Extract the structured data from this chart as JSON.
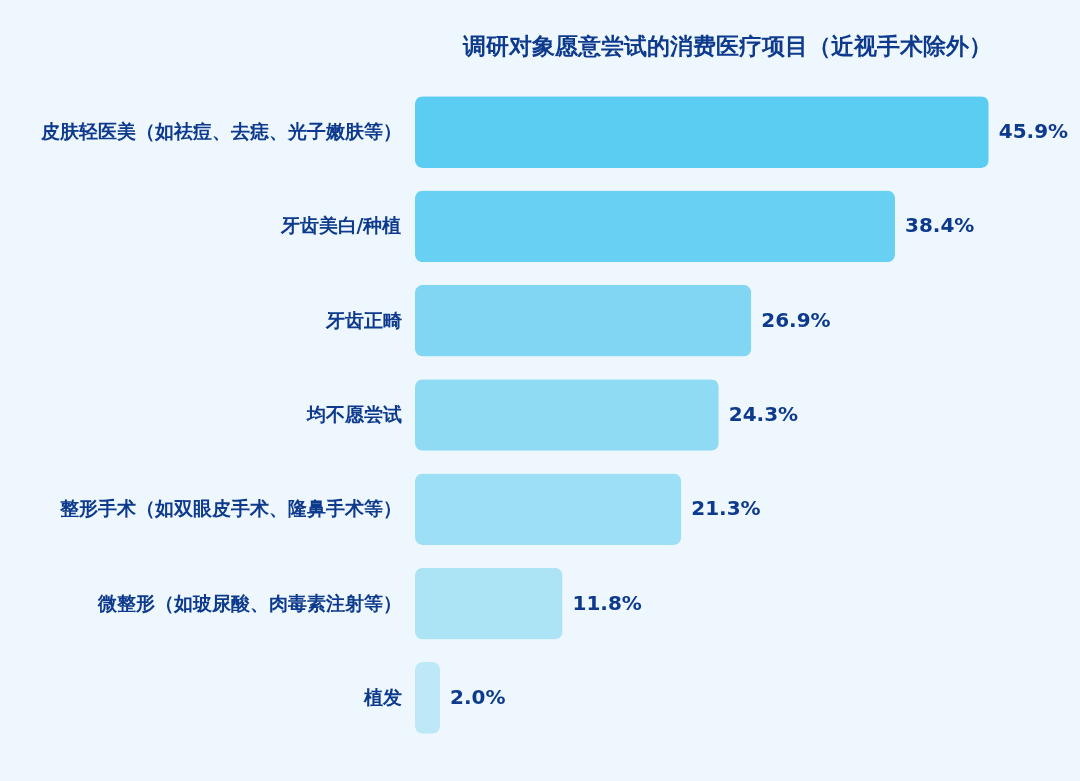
{
  "chart_data": {
    "type": "bar",
    "orientation": "horizontal",
    "title": "调研对象愿意尝试的消费医疗项目（近视手术除外）",
    "categories": [
      "皮肤轻医美（如祛痘、去痣、光子嫩肤等）",
      "牙齿美白/种植",
      "牙齿正畸",
      "均不愿尝试",
      "整形手术（如双眼皮手术、隆鼻手术等）",
      "微整形（如玻尿酸、肉毒素注射等）",
      "植发"
    ],
    "values": [
      45.9,
      38.4,
      26.9,
      24.3,
      21.3,
      11.8,
      2.0
    ],
    "value_labels": [
      "45.9%",
      "38.4%",
      "26.9%",
      "24.3%",
      "21.3%",
      "11.8%",
      "2.0%"
    ],
    "colors": [
      "#5ccdf2",
      "#68d0f2",
      "#80d6f3",
      "#8fdbf4",
      "#9ddff5",
      "#ace3f5",
      "#bde8f7"
    ],
    "tick_labels": "y"
  }
}
